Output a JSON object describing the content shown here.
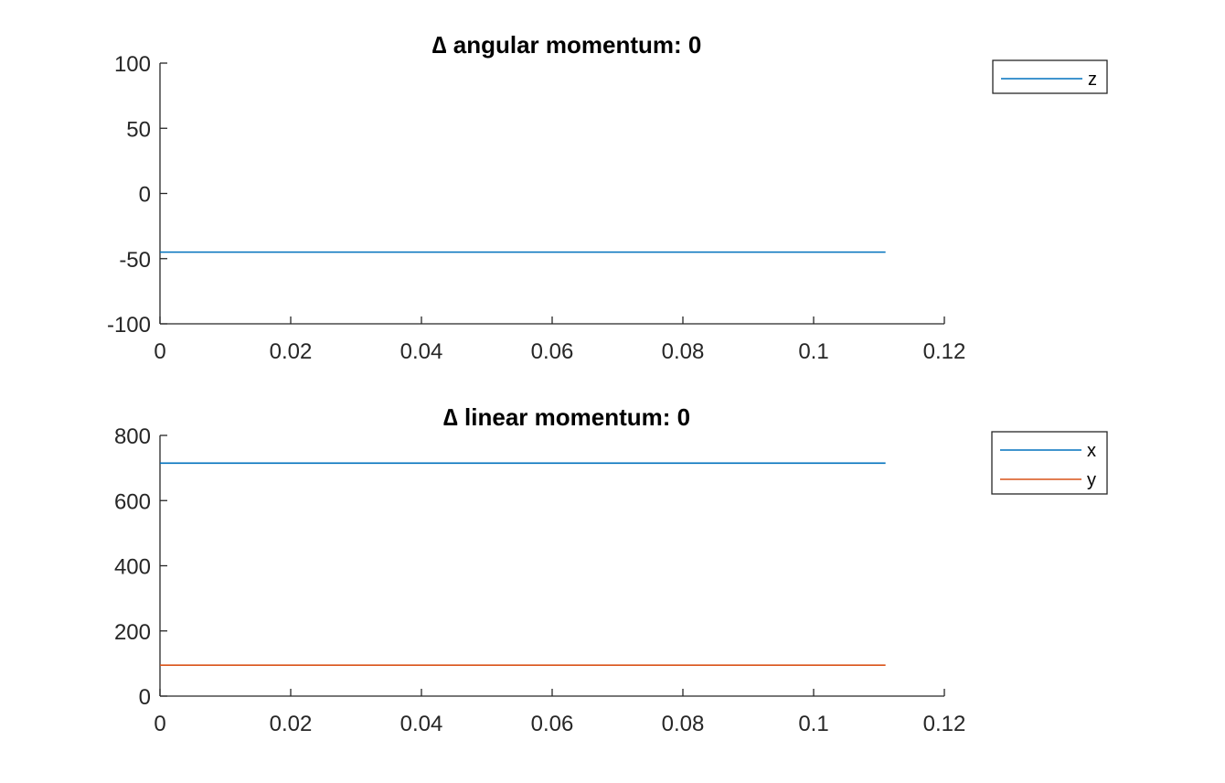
{
  "chart_data": [
    {
      "type": "line",
      "title": "∆ angular momentum: 0",
      "xlabel": "",
      "ylabel": "",
      "xlim": [
        0,
        0.12
      ],
      "ylim": [
        -100,
        100
      ],
      "x_ticks": [
        0,
        0.02,
        0.04,
        0.06,
        0.08,
        0.1,
        0.12
      ],
      "x_tick_labels": [
        "0",
        "0.02",
        "0.04",
        "0.06",
        "0.08",
        "0.1",
        "0.12"
      ],
      "y_ticks": [
        -100,
        -50,
        0,
        50,
        100
      ],
      "y_tick_labels": [
        "-100",
        "-50",
        "0",
        "50",
        "100"
      ],
      "grid": false,
      "legend_position": "outside-top-right",
      "series": [
        {
          "name": "z",
          "color": "#0072bd",
          "x": [
            0,
            0.111
          ],
          "y": [
            -45,
            -45
          ]
        }
      ]
    },
    {
      "type": "line",
      "title": "∆ linear momentum: 0",
      "xlabel": "",
      "ylabel": "",
      "xlim": [
        0,
        0.12
      ],
      "ylim": [
        0,
        800
      ],
      "x_ticks": [
        0,
        0.02,
        0.04,
        0.06,
        0.08,
        0.1,
        0.12
      ],
      "x_tick_labels": [
        "0",
        "0.02",
        "0.04",
        "0.06",
        "0.08",
        "0.1",
        "0.12"
      ],
      "y_ticks": [
        0,
        200,
        400,
        600,
        800
      ],
      "y_tick_labels": [
        "0",
        "200",
        "400",
        "600",
        "800"
      ],
      "grid": false,
      "legend_position": "outside-top-right",
      "series": [
        {
          "name": "x",
          "color": "#0072bd",
          "x": [
            0,
            0.111
          ],
          "y": [
            715,
            715
          ]
        },
        {
          "name": "y",
          "color": "#d95319",
          "x": [
            0,
            0.111
          ],
          "y": [
            95,
            95
          ]
        }
      ]
    }
  ]
}
